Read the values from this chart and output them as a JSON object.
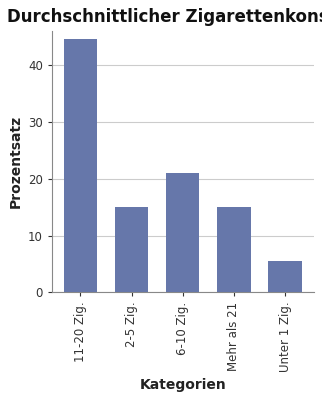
{
  "title": "Durchschnittlicher Zigarettenkonsum",
  "categories": [
    "11-20 Zig.",
    "2-5 Zig.",
    "6-10 Zig.",
    "Mehr als 21",
    "Unter 1 Zig."
  ],
  "values": [
    44.5,
    15,
    21,
    15,
    5.5
  ],
  "bar_color": "#6677aa",
  "xlabel": "Kategorien",
  "ylabel": "Prozentsatz",
  "ylim": [
    0,
    46
  ],
  "yticks": [
    0,
    10,
    20,
    30,
    40
  ],
  "background_color": "#ffffff",
  "plot_bg_color": "#ffffff",
  "title_fontsize": 12,
  "axis_label_fontsize": 10,
  "tick_fontsize": 8.5,
  "grid_color": "#cccccc",
  "spine_color": "#888888"
}
